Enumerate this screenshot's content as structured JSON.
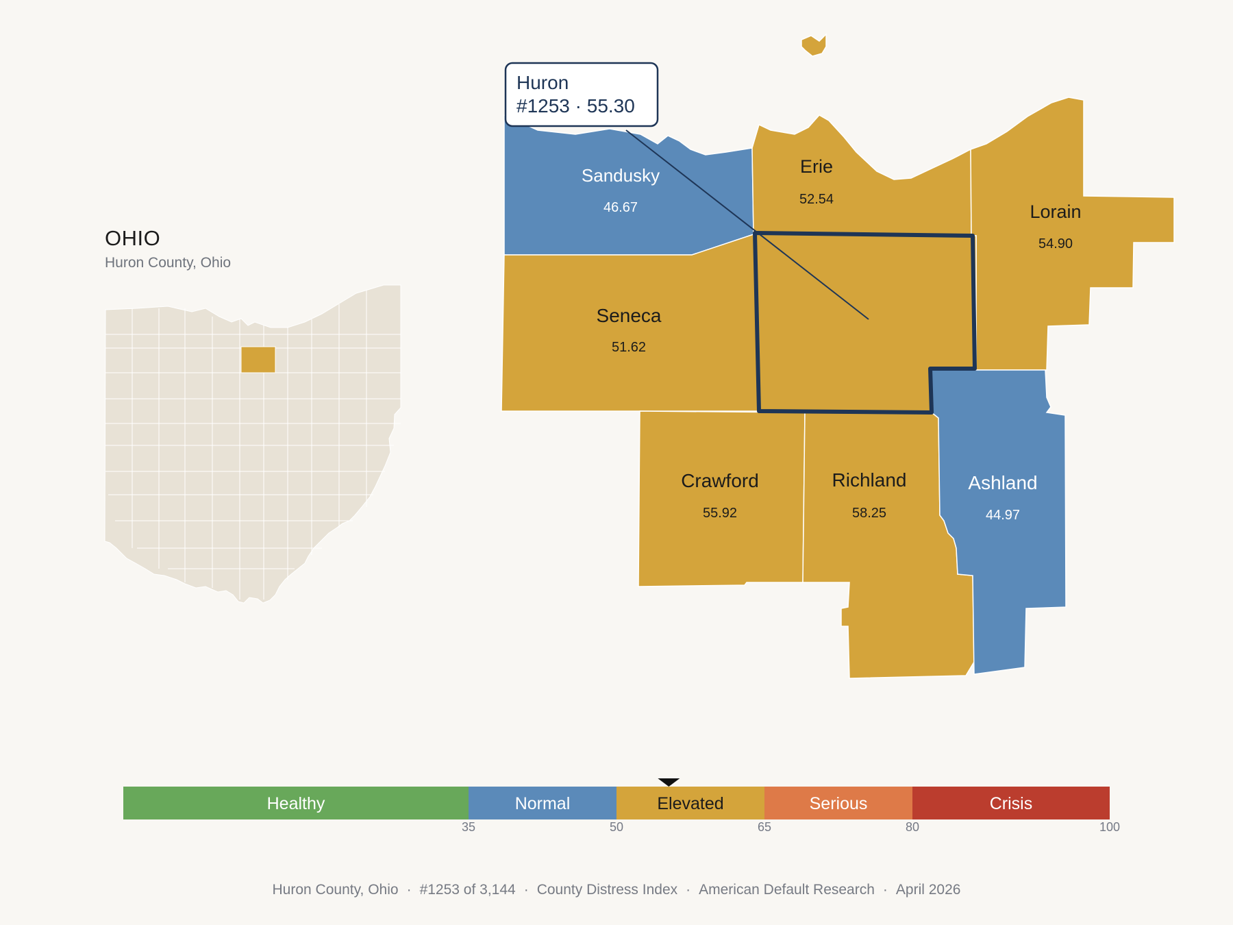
{
  "inset": {
    "state_name": "OHIO",
    "subtitle": "Huron County, Ohio"
  },
  "callout": {
    "county": "Huron",
    "detail": "#1253 · 55.30"
  },
  "counties": [
    {
      "id": "sandusky",
      "name": "Sandusky",
      "value": "46.67",
      "category": "Normal"
    },
    {
      "id": "erie",
      "name": "Erie",
      "value": "52.54",
      "category": "Elevated"
    },
    {
      "id": "lorain",
      "name": "Lorain",
      "value": "54.90",
      "category": "Elevated"
    },
    {
      "id": "seneca",
      "name": "Seneca",
      "value": "51.62",
      "category": "Elevated"
    },
    {
      "id": "huron",
      "name": "Huron",
      "value": "55.30",
      "category": "Elevated",
      "selected": true
    },
    {
      "id": "crawford",
      "name": "Crawford",
      "value": "55.92",
      "category": "Elevated"
    },
    {
      "id": "richland",
      "name": "Richland",
      "value": "58.25",
      "category": "Elevated"
    },
    {
      "id": "ashland",
      "name": "Ashland",
      "value": "44.97",
      "category": "Normal"
    }
  ],
  "colors": {
    "healthy": "#68a85a",
    "normal": "#5b8ab9",
    "elevated": "#d4a43b",
    "serious": "#de7a48",
    "crisis": "#bb3d2e",
    "inset_fill": "#e8e2d6",
    "outline": "#1e3556"
  },
  "scale": {
    "segments": [
      {
        "label": "Healthy",
        "from": 0,
        "to": 35
      },
      {
        "label": "Normal",
        "from": 35,
        "to": 50
      },
      {
        "label": "Elevated",
        "from": 50,
        "to": 65
      },
      {
        "label": "Serious",
        "from": 65,
        "to": 80
      },
      {
        "label": "Crisis",
        "from": 80,
        "to": 100
      }
    ],
    "ticks": [
      "35",
      "50",
      "65",
      "80",
      "100"
    ],
    "marker_value": 55.3
  },
  "footer": {
    "county": "Huron County, Ohio",
    "rank": "#1253 of 3,144",
    "index": "County Distress Index",
    "source": "American Default Research",
    "date": "April 2026"
  }
}
